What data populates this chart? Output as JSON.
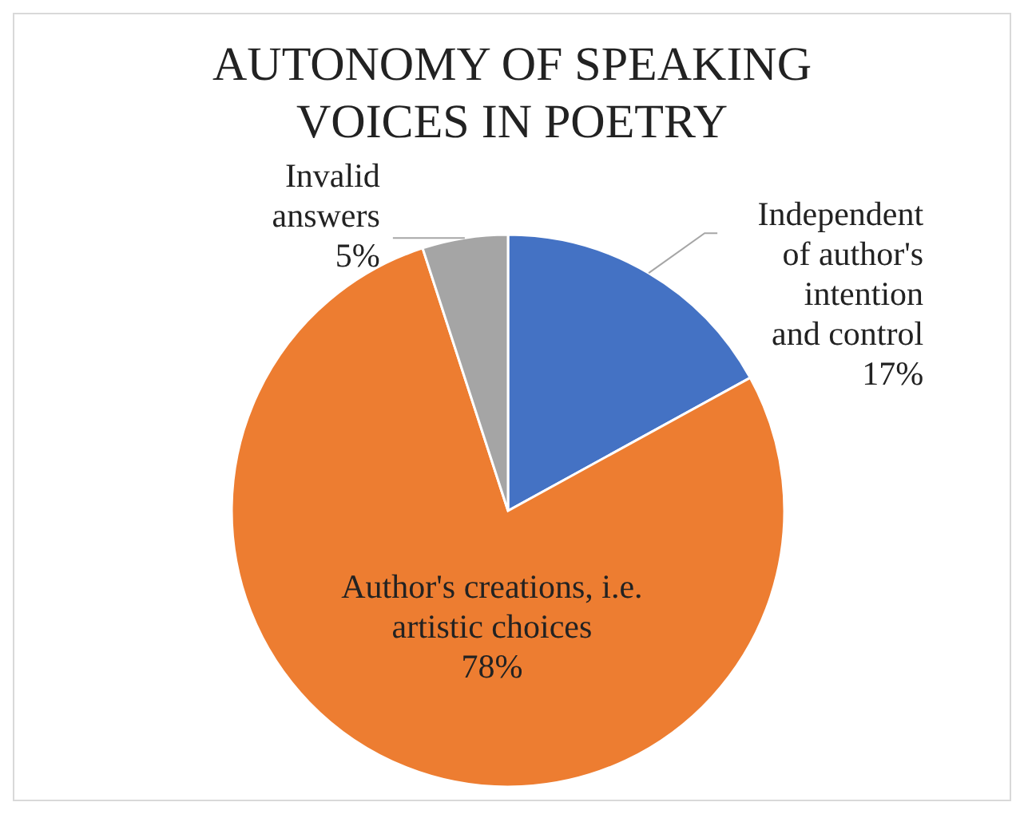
{
  "chart_data": {
    "type": "pie",
    "title": "AUTONOMY OF SPEAKING VOICES IN POETRY",
    "categories": [
      "Independent of author's intention and control",
      "Author's creations, i.e. artistic choices",
      "Invalid answers"
    ],
    "values": [
      17,
      78,
      5
    ],
    "colors": [
      "#4472c4",
      "#ed7d31",
      "#a5a5a5"
    ],
    "value_labels": [
      "17%",
      "78%",
      "5%"
    ]
  }
}
